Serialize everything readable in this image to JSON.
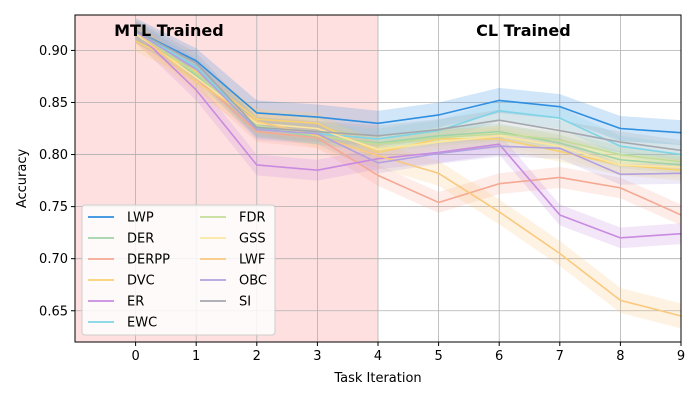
{
  "chart_data": {
    "type": "line",
    "xlabel": "Task Iteration",
    "ylabel": "Accuracy",
    "xlim": [
      -1,
      9
    ],
    "ylim": [
      0.62,
      0.934
    ],
    "xticks": [
      0,
      1,
      2,
      3,
      4,
      5,
      6,
      7,
      8,
      9
    ],
    "yticks": [
      0.65,
      0.7,
      0.75,
      0.8,
      0.85,
      0.9
    ],
    "ytick_labels": [
      "0.65",
      "0.70",
      "0.75",
      "0.80",
      "0.85",
      "0.90"
    ],
    "grid": true,
    "regions": [
      {
        "label": "MTL Trained",
        "x_start": -1,
        "x_end": 4,
        "color": "#ffe0e0"
      },
      {
        "label": "CL Trained",
        "x_start": 4,
        "x_end": 9,
        "color": "#ffffff"
      }
    ],
    "legend_position": "lower-left",
    "x": [
      0,
      1,
      2,
      3,
      4,
      5,
      6,
      7,
      8,
      9
    ],
    "series": [
      {
        "name": "LWP",
        "color": "#2f8fe0",
        "band": 0.012,
        "values": [
          0.919,
          0.89,
          0.84,
          0.836,
          0.83,
          0.838,
          0.852,
          0.846,
          0.825,
          0.821
        ]
      },
      {
        "name": "DER",
        "color": "#9fd3a8",
        "band": 0.008,
        "values": [
          0.918,
          0.876,
          0.826,
          0.817,
          0.811,
          0.818,
          0.822,
          0.811,
          0.795,
          0.79
        ]
      },
      {
        "name": "DERPP",
        "color": "#f5a892",
        "band": 0.01,
        "values": [
          0.917,
          0.874,
          0.822,
          0.816,
          0.78,
          0.754,
          0.772,
          0.778,
          0.768,
          0.742
        ]
      },
      {
        "name": "DVC",
        "color": "#f8d070",
        "band": 0.01,
        "values": [
          0.909,
          0.88,
          0.834,
          0.83,
          0.802,
          0.815,
          0.815,
          0.803,
          0.79,
          0.785
        ]
      },
      {
        "name": "ER",
        "color": "#c98be0",
        "band": 0.01,
        "values": [
          0.918,
          0.862,
          0.79,
          0.785,
          0.796,
          0.802,
          0.81,
          0.742,
          0.72,
          0.724
        ]
      },
      {
        "name": "EWC",
        "color": "#7fd4e6",
        "band": 0.01,
        "values": [
          0.919,
          0.884,
          0.826,
          0.82,
          0.815,
          0.823,
          0.842,
          0.835,
          0.808,
          0.8
        ]
      },
      {
        "name": "FDR",
        "color": "#c2dc98",
        "band": 0.008,
        "values": [
          0.918,
          0.878,
          0.828,
          0.818,
          0.81,
          0.816,
          0.82,
          0.814,
          0.8,
          0.793
        ]
      },
      {
        "name": "GSS",
        "color": "#fbe7a0",
        "band": 0.01,
        "values": [
          0.916,
          0.874,
          0.83,
          0.825,
          0.805,
          0.812,
          0.818,
          0.808,
          0.79,
          0.788
        ]
      },
      {
        "name": "LWF",
        "color": "#f9c97e",
        "band": 0.012,
        "values": [
          0.918,
          0.87,
          0.832,
          0.818,
          0.799,
          0.782,
          0.745,
          0.705,
          0.66,
          0.645
        ]
      },
      {
        "name": "OBC",
        "color": "#b3a0e0",
        "band": 0.01,
        "values": [
          0.918,
          0.882,
          0.824,
          0.82,
          0.792,
          0.801,
          0.808,
          0.806,
          0.781,
          0.782
        ]
      },
      {
        "name": "SI",
        "color": "#a4a8ae",
        "band": 0.01,
        "values": [
          0.919,
          0.888,
          0.826,
          0.822,
          0.818,
          0.824,
          0.833,
          0.823,
          0.812,
          0.804
        ]
      }
    ]
  }
}
